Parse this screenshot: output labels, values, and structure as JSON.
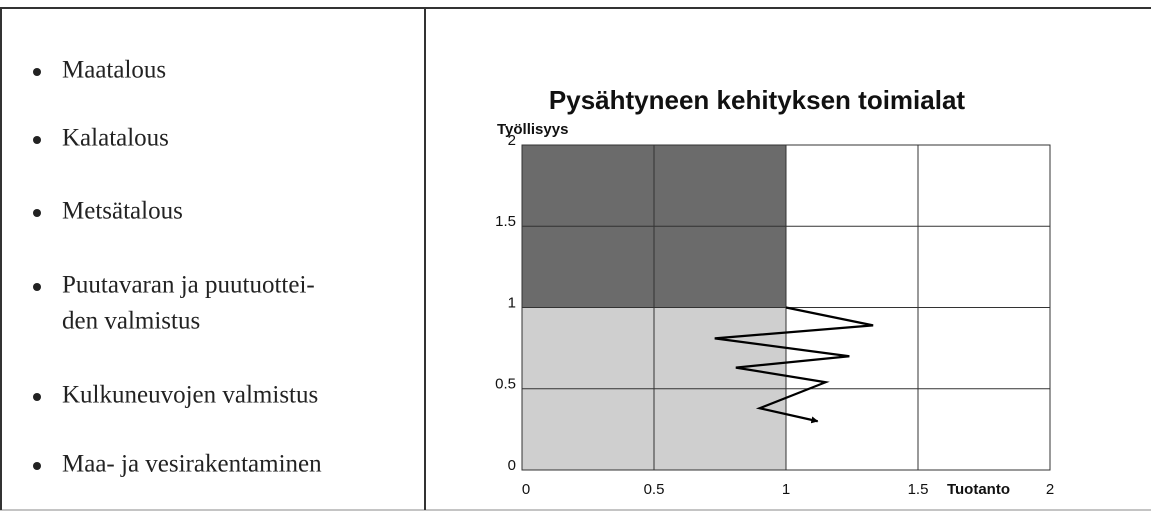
{
  "list": {
    "items": [
      [
        "Maatalous"
      ],
      [
        "Kalatalous"
      ],
      [
        "Metsätalous"
      ],
      [
        "Puutavaran ja puutuottei-",
        "den valmistus"
      ],
      [
        "Kulkuneuvojen valmistus"
      ],
      [
        "Maa- ja vesirakentaminen"
      ]
    ]
  },
  "chart_data": {
    "type": "line",
    "title": "Pysähtyneen kehityksen toimialat",
    "xlabel": "Tuotanto",
    "ylabel": "Työllisyys",
    "x": [
      1,
      1.33,
      0.73,
      1.24,
      0.81,
      1.15,
      0.9,
      1.12
    ],
    "series": [
      {
        "name": null,
        "color": "#000000",
        "values": [
          1,
          0.89,
          0.81,
          0.7,
          0.63,
          0.54,
          0.38,
          0.3
        ]
      }
    ],
    "xlim": [
      0,
      2
    ],
    "ylim": [
      0,
      2
    ],
    "xticks": [
      0,
      0.5,
      1,
      1.5,
      2
    ],
    "yticks": [
      0,
      0.5,
      1,
      1.5,
      2
    ],
    "grid": true
  }
}
